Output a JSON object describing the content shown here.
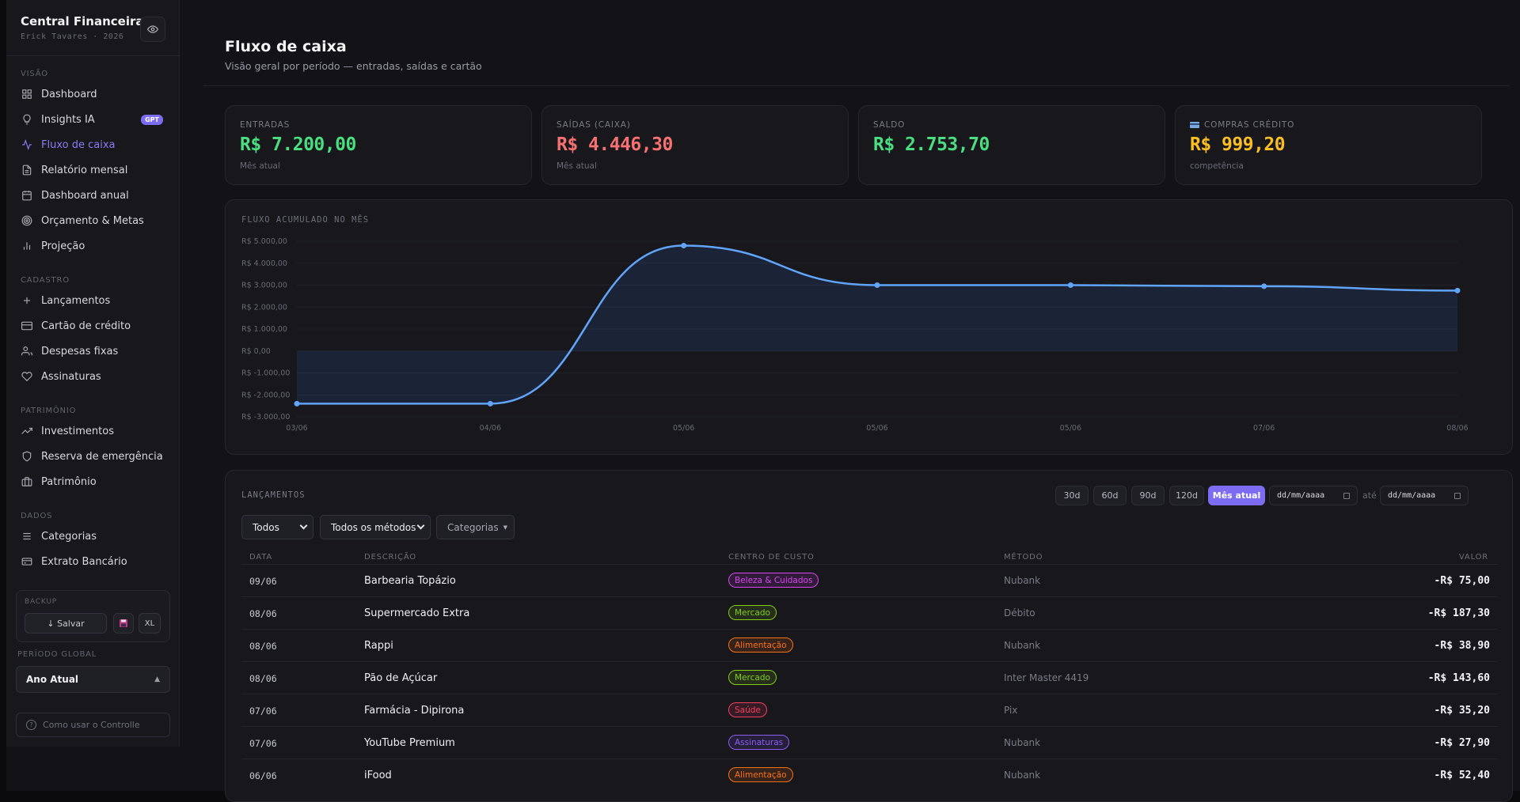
{
  "sidebar": {
    "brand_title": "Central Financeira",
    "brand_sub": "Erick Tavares · 2026",
    "sections": {
      "visao": "VISÃO",
      "cadastro": "CADASTRO",
      "patrimonio": "PATRIMÔNIO",
      "dados": "DADOS"
    },
    "items": {
      "dashboard": "Dashboard",
      "insights": "Insights IA",
      "insights_badge": "GPT",
      "fluxo": "Fluxo de caixa",
      "relatorio": "Relatório mensal",
      "anual": "Dashboard anual",
      "orcamento": "Orçamento & Metas",
      "projecao": "Projeção",
      "lancamentos": "Lançamentos",
      "cartao": "Cartão de crédito",
      "despesas": "Despesas fixas",
      "assinaturas": "Assinaturas",
      "investimentos": "Investimentos",
      "reserva": "Reserva de emergência",
      "patrimonio": "Patrimônio",
      "categorias": "Categorias",
      "extrato": "Extrato Bancário"
    },
    "backup_label": "BACKUP",
    "save_label": "↓ Salvar",
    "xl_label": "XL",
    "period_label": "PERÍODO GLOBAL",
    "period_value": "Ano Atual",
    "help_label": "Como usar o Controlle"
  },
  "header": {
    "title": "Fluxo de caixa",
    "subtitle": "Visão geral por período — entradas, saídas e cartão"
  },
  "kpis": {
    "entradas": {
      "label": "ENTRADAS",
      "value": "R$ 7.200,00",
      "foot": "Mês atual",
      "color": "#4ade80"
    },
    "saidas": {
      "label": "SAÍDAS (CAIXA)",
      "value": "R$ 4.446,30",
      "foot": "Mês atual",
      "color": "#f87171"
    },
    "saldo": {
      "label": "SALDO",
      "value": "R$ 2.753,70",
      "foot": "",
      "color": "#4ade80"
    },
    "credito": {
      "label": "COMPRAS CRÉDITO",
      "value": "R$ 999,20",
      "foot": "competência",
      "color": "#fbbf24"
    }
  },
  "chart_data": {
    "type": "area",
    "title": "FLUXO ACUMULADO NO MÊS",
    "x": [
      "03/06",
      "04/06",
      "05/06",
      "05/06",
      "05/06",
      "07/06",
      "08/06"
    ],
    "series": [
      {
        "values": [
          -2400,
          -2400,
          4800,
          3000,
          3000,
          2950,
          2753.7
        ]
      }
    ],
    "yticks": [
      "R$ 5.000,00",
      "R$ 4.000,00",
      "R$ 3.000,00",
      "R$ 2.000,00",
      "R$ 1.000,00",
      "R$ 0,00",
      "R$ -1.000,00",
      "R$ -2.000,00",
      "R$ -3.000,00"
    ],
    "ylim": [
      -3000,
      5000
    ],
    "grid": true,
    "line_color": "#60a5fa"
  },
  "lancamentos": {
    "title": "LANÇAMENTOS",
    "ranges": [
      "30d",
      "60d",
      "90d",
      "120d",
      "Mês atual"
    ],
    "date_from": "dd/mm/aaaa",
    "ate": "até",
    "date_to": "dd/mm/aaaa",
    "filter_tipo": "Todos",
    "filter_metodo": "Todos os métodos",
    "filter_cat": "Categorias",
    "headers": {
      "data": "DATA",
      "descricao": "DESCRIÇÃO",
      "centro": "CENTRO DE CUSTO",
      "metodo": "MÉTODO",
      "valor": "VALOR"
    },
    "rows": [
      {
        "data": "09/06",
        "descricao": "Barbearia Topázio",
        "centro": "Beleza & Cuidados",
        "metodo": "Nubank",
        "valor": "-R$ 75,00",
        "tag_color": "#d946ef"
      },
      {
        "data": "08/06",
        "descricao": "Supermercado Extra",
        "centro": "Mercado",
        "metodo": "Débito",
        "valor": "-R$ 187,30",
        "tag_color": "#84cc16"
      },
      {
        "data": "08/06",
        "descricao": "Rappi",
        "centro": "Alimentação",
        "metodo": "Nubank",
        "valor": "-R$ 38,90",
        "tag_color": "#f97316"
      },
      {
        "data": "08/06",
        "descricao": "Pão de Açúcar",
        "centro": "Mercado",
        "metodo": "Inter Master 4419",
        "valor": "-R$ 143,60",
        "tag_color": "#84cc16"
      },
      {
        "data": "07/06",
        "descricao": "Farmácia - Dipirona",
        "centro": "Saúde",
        "metodo": "Pix",
        "valor": "-R$ 35,20",
        "tag_color": "#f43f5e"
      },
      {
        "data": "07/06",
        "descricao": "YouTube Premium",
        "centro": "Assinaturas",
        "metodo": "Nubank",
        "valor": "-R$ 27,90",
        "tag_color": "#8b5cf6"
      },
      {
        "data": "06/06",
        "descricao": "iFood",
        "centro": "Alimentação",
        "metodo": "Nubank",
        "valor": "-R$ 52,40",
        "tag_color": "#f97316"
      }
    ]
  },
  "icons": {
    "eye": "eye-icon",
    "dashboard": "grid-icon",
    "insights": "lightbulb-icon",
    "fluxo": "activity-icon",
    "relatorio": "file-icon",
    "anual": "calendar-icon",
    "orcamento": "target-icon",
    "projecao": "bar-chart-icon",
    "lancamentos": "plus-icon",
    "cartao": "credit-card-icon",
    "despesas": "users-icon",
    "assinaturas": "heart-icon",
    "investimentos": "trending-up-icon",
    "reserva": "shield-icon",
    "patrimonio": "briefcase-icon",
    "categorias": "list-icon",
    "extrato": "wallet-icon"
  }
}
